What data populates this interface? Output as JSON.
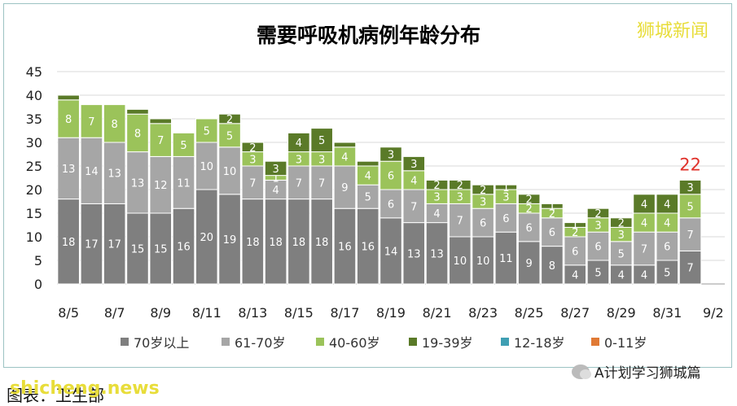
{
  "title": "需要呼吸机病例年龄分布",
  "watermark": "狮城新闻",
  "footer": {
    "left_text": "图表：卫生部",
    "site": "shicheng.news",
    "right_text": "A计划学习狮城篇"
  },
  "colors": {
    "70+": "#7f7f7f",
    "61-70": "#a6a6a6",
    "40-60": "#9bc35a",
    "19-39": "#5a7a28",
    "12-18": "#3f9fb3",
    "0-11": "#e07a35",
    "total_label": "#e0312a",
    "grid": "#d9d9d9"
  },
  "chart_data": {
    "type": "bar",
    "stacked": true,
    "title": "需要呼吸机病例年龄分布",
    "ylim": [
      0,
      45
    ],
    "yticks": [
      0,
      5,
      10,
      15,
      20,
      25,
      30,
      35,
      40,
      45
    ],
    "categories": [
      "8/5",
      "8/6",
      "8/7",
      "8/8",
      "8/9",
      "8/10",
      "8/11",
      "8/12",
      "8/13",
      "8/14",
      "8/15",
      "8/16",
      "8/17",
      "8/18",
      "8/19",
      "8/20",
      "8/21",
      "8/22",
      "8/23",
      "8/24",
      "8/25",
      "8/26",
      "8/27",
      "8/28",
      "8/29",
      "8/30",
      "8/31",
      "9/1",
      "9/2"
    ],
    "xtick_labels": [
      "8/5",
      "8/7",
      "8/9",
      "8/11",
      "8/13",
      "8/15",
      "8/17",
      "8/19",
      "8/21",
      "8/23",
      "8/25",
      "8/27",
      "8/29",
      "8/31",
      "9/2"
    ],
    "series": [
      {
        "name": "70岁以上",
        "key": "70+",
        "values": [
          18,
          17,
          17,
          15,
          15,
          16,
          20,
          19,
          18,
          18,
          18,
          18,
          16,
          16,
          14,
          13,
          13,
          10,
          10,
          11,
          9,
          8,
          4,
          5,
          4,
          4,
          5,
          7,
          null
        ]
      },
      {
        "name": "61-70岁",
        "key": "61-70",
        "values": [
          13,
          14,
          13,
          13,
          12,
          11,
          10,
          10,
          7,
          4,
          7,
          7,
          9,
          5,
          6,
          7,
          4,
          7,
          6,
          6,
          6,
          6,
          6,
          6,
          5,
          7,
          6,
          7,
          null
        ]
      },
      {
        "name": "40-60岁",
        "key": "40-60",
        "values": [
          8,
          7,
          8,
          8,
          7,
          5,
          5,
          5,
          3,
          1,
          3,
          3,
          4,
          4,
          6,
          4,
          3,
          3,
          3,
          3,
          2,
          2,
          2,
          3,
          3,
          4,
          4,
          5,
          null
        ]
      },
      {
        "name": "19-39岁",
        "key": "19-39",
        "values": [
          1,
          0,
          0,
          1,
          1,
          0,
          0,
          2,
          2,
          3,
          4,
          5,
          1,
          1,
          3,
          3,
          2,
          2,
          2,
          1,
          2,
          1,
          1,
          2,
          2,
          4,
          4,
          3,
          null
        ]
      },
      {
        "name": "12-18岁",
        "key": "12-18",
        "values": [
          0,
          0,
          0,
          0,
          0,
          0,
          0,
          0,
          0,
          0,
          0,
          0,
          0,
          0,
          0,
          0,
          0,
          0,
          0,
          0,
          0,
          0,
          0,
          0,
          0,
          0,
          0,
          0,
          null
        ]
      },
      {
        "name": "0-11岁",
        "key": "0-11",
        "values": [
          0,
          0,
          0,
          0,
          0,
          0,
          0,
          0,
          0,
          0,
          0,
          0,
          0,
          0,
          0,
          0,
          0,
          0,
          0,
          0,
          0,
          0,
          0,
          0,
          0,
          0,
          0,
          0,
          null
        ]
      }
    ],
    "segment_labels_hidden": [
      [
        0,
        "19-39"
      ],
      [
        3,
        "19-39"
      ],
      [
        4,
        "19-39"
      ],
      [
        12,
        "19-39"
      ],
      [
        13,
        "19-39"
      ]
    ],
    "total_annotation": {
      "category": "9/1",
      "value": "22"
    },
    "grid": true,
    "legend_position": "bottom"
  }
}
